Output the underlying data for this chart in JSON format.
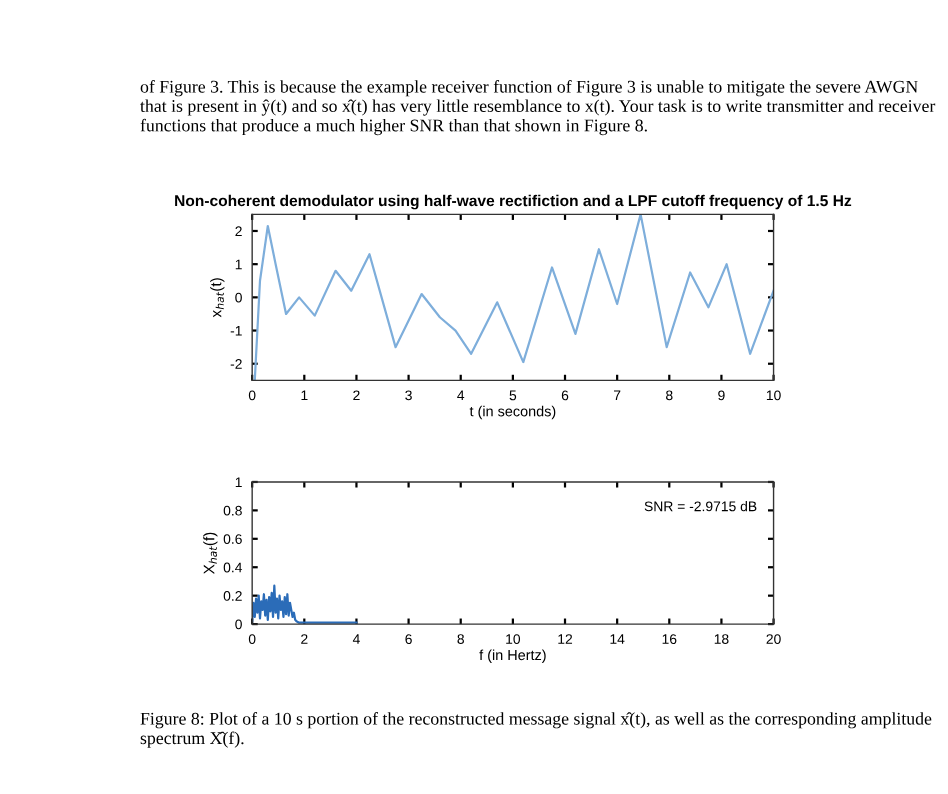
{
  "chart_data": [
    {
      "type": "line",
      "title": "Non-coherent demodulator using half-wave rectifiction and a LPF cutoff frequency of 1.5 Hz",
      "xlabel": "t (in seconds)",
      "ylabel": "x$_{hat}$(t)",
      "annotations": [
        "of Figure 3. This is because the example receiver function of Figure 3 is unable to mitigate the severe AWGN that is present in ŷ(t) and so x̂(t) has very little resemblance to x(t). Your task is to write transmitter and receiver functions that produce a much higher SNR than that shown in Figure 8."
      ],
      "x": [
        0.05,
        0.15,
        0.3,
        0.45,
        0.65,
        0.9,
        1.2,
        1.6,
        1.9,
        2.25,
        2.75,
        3.25,
        3.6,
        3.9,
        4.2,
        4.7,
        5.2,
        5.75,
        6.2,
        6.65,
        7.0,
        7.45,
        7.95,
        8.4,
        8.75,
        9.1,
        9.55,
        10.0
      ],
      "series": [
        {
          "color": "#7eaedb",
          "values": [
            -2.5,
            0.5,
            2.15,
            1.0,
            -0.5,
            0.0,
            -0.55,
            0.8,
            0.2,
            1.3,
            -1.5,
            0.1,
            -0.6,
            -1.0,
            -1.7,
            -0.15,
            -1.95,
            0.9,
            -1.1,
            1.45,
            -0.2,
            2.5,
            -1.5,
            0.75,
            -0.3,
            1.0,
            -1.7,
            0.2
          ]
        }
      ],
      "xlim": [
        0,
        10
      ],
      "ylim": [
        -2.5,
        2.5
      ],
      "xticks": [
        0,
        1,
        2,
        3,
        4,
        5,
        6,
        7,
        8,
        9,
        10
      ],
      "yticks": [
        -2,
        -1,
        0,
        1,
        2
      ],
      "grid": false,
      "legend": false
    },
    {
      "type": "line",
      "xlabel": "f (in Hertz)",
      "ylabel": "X$_{hat}$(f)",
      "annotations": [
        "SNR = -2.9715 dB",
        "Figure 8: Plot of a 10 s portion of the reconstructed message signal x̂(t), as well as the corresponding amplitude spectrum X̂(f)."
      ],
      "x": [
        0,
        0.05,
        0.1,
        0.15,
        0.2,
        0.25,
        0.3,
        0.35,
        0.4,
        0.45,
        0.5,
        0.55,
        0.6,
        0.65,
        0.7,
        0.75,
        0.8,
        0.85,
        0.9,
        0.95,
        1.0,
        1.05,
        1.1,
        1.15,
        1.2,
        1.25,
        1.3,
        1.35,
        1.4,
        1.45,
        1.5,
        1.55,
        1.6,
        1.65,
        1.7,
        1.8,
        2.0,
        2.5,
        3.0,
        4.0
      ],
      "series": [
        {
          "color": "#2b6cb8",
          "values": [
            0.02,
            0.15,
            0.05,
            0.18,
            0.08,
            0.2,
            0.04,
            0.16,
            0.1,
            0.21,
            0.06,
            0.17,
            0.03,
            0.19,
            0.09,
            0.22,
            0.05,
            0.27,
            0.08,
            0.18,
            0.04,
            0.2,
            0.1,
            0.16,
            0.05,
            0.19,
            0.07,
            0.21,
            0.06,
            0.15,
            0.1,
            0.05,
            0.08,
            0.03,
            0.02,
            0.01,
            0.01,
            0.01,
            0.01,
            0.01
          ]
        }
      ],
      "xlim": [
        0,
        20
      ],
      "ylim": [
        0,
        1
      ],
      "xticks": [
        0,
        2,
        4,
        6,
        8,
        10,
        12,
        14,
        16,
        18,
        20
      ],
      "yticks": [
        0,
        0.2,
        0.4,
        0.6,
        0.8,
        1
      ],
      "grid": false,
      "legend": false
    }
  ]
}
